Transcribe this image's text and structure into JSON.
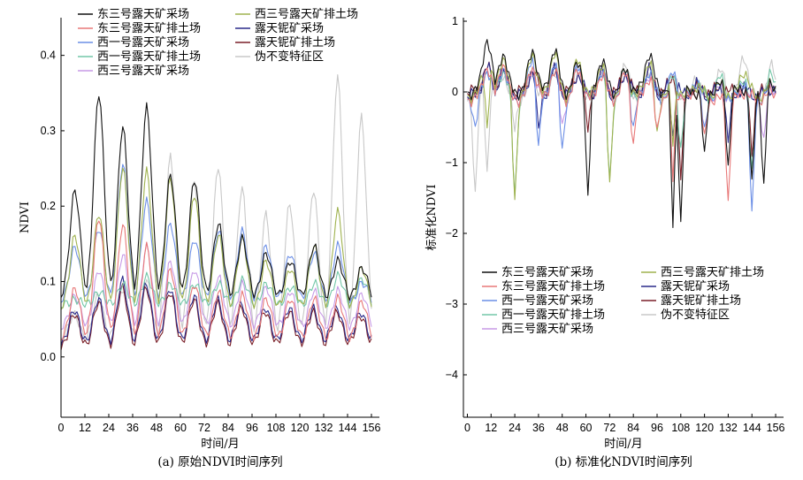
{
  "series_styles": [
    {
      "key": "east3_mine",
      "color": "#111111",
      "width": 1.1
    },
    {
      "key": "east3_dump",
      "color": "#e87878",
      "width": 1.1
    },
    {
      "key": "west1_mine",
      "color": "#6c8fe6",
      "width": 1.1
    },
    {
      "key": "west1_dump",
      "color": "#73c7a8",
      "width": 1.1
    },
    {
      "key": "west3_mine",
      "color": "#c79ae6",
      "width": 1.1
    },
    {
      "key": "west3_dump",
      "color": "#9fb24f",
      "width": 1.1
    },
    {
      "key": "niobium_mine",
      "color": "#2a2a8a",
      "width": 1.1
    },
    {
      "key": "niobium_dump",
      "color": "#7a1f28",
      "width": 1.1
    },
    {
      "key": "invariant",
      "color": "#c8c8c8",
      "width": 1.1
    }
  ],
  "chart_data": [
    {
      "id": "panel_a",
      "type": "line",
      "caption": "(a) 原始NDVI时间序列",
      "xlabel": "时间/月",
      "ylabel": "NDVI",
      "xlim": [
        0,
        160
      ],
      "ylim": [
        -0.08,
        0.45
      ],
      "xticks": [
        0,
        12,
        24,
        36,
        48,
        60,
        72,
        84,
        96,
        108,
        120,
        132,
        144,
        156
      ],
      "yticks": [
        0.0,
        0.1,
        0.2,
        0.3,
        0.4
      ],
      "ytick_labels": [
        "0.0",
        "0.1",
        "0.2",
        "0.3",
        "0.4"
      ],
      "legend": {
        "placement": "top-left",
        "rows": [
          [
            {
              "key": "east3_mine",
              "label": "东三号露天矿采场"
            },
            {
              "key": "west3_dump",
              "label": "西三号露天矿排土场"
            }
          ],
          [
            {
              "key": "east3_dump",
              "label": "东三号露天矿排土场"
            },
            {
              "key": "niobium_mine",
              "label": "露天铌矿采场"
            }
          ],
          [
            {
              "key": "west1_mine",
              "label": "西一号露天矿采场"
            },
            {
              "key": "niobium_dump",
              "label": "露天铌矿排土场"
            }
          ],
          [
            {
              "key": "west1_dump",
              "label": "西一号露天矿排土场"
            },
            {
              "key": "invariant",
              "label": "伪不变特征区"
            }
          ],
          [
            {
              "key": "west3_mine",
              "label": "西三号露天矿采场"
            }
          ]
        ]
      },
      "season_peaks": [
        {
          "x": 7,
          "values": {
            "east3_mine": 0.225,
            "west3_dump": 0.165,
            "east3_dump": 0.095,
            "west1_mine": 0.15,
            "west1_dump": 0.08,
            "west3_mine": 0.085,
            "niobium_mine": 0.06,
            "niobium_dump": 0.055,
            "invariant": 0.055
          }
        },
        {
          "x": 19,
          "values": {
            "east3_mine": 0.355,
            "west3_dump": 0.195,
            "east3_dump": 0.19,
            "west1_mine": 0.175,
            "west1_dump": 0.09,
            "west3_mine": 0.12,
            "niobium_mine": 0.075,
            "niobium_dump": 0.07,
            "invariant": 0.08
          }
        },
        {
          "x": 31,
          "values": {
            "east3_mine": 0.31,
            "west3_dump": 0.255,
            "east3_dump": 0.18,
            "west1_mine": 0.26,
            "west1_dump": 0.1,
            "west3_mine": 0.14,
            "niobium_mine": 0.1,
            "niobium_dump": 0.09,
            "invariant": 0.09
          }
        },
        {
          "x": 43,
          "values": {
            "east3_mine": 0.335,
            "west3_dump": 0.25,
            "east3_dump": 0.15,
            "west1_mine": 0.21,
            "west1_dump": 0.11,
            "west3_mine": 0.15,
            "niobium_mine": 0.095,
            "niobium_dump": 0.09,
            "invariant": 0.1
          }
        },
        {
          "x": 55,
          "values": {
            "east3_mine": 0.245,
            "west3_dump": 0.24,
            "east3_dump": 0.12,
            "west1_mine": 0.18,
            "west1_dump": 0.1,
            "west3_mine": 0.13,
            "niobium_mine": 0.09,
            "niobium_dump": 0.085,
            "invariant": 0.265
          }
        },
        {
          "x": 67,
          "values": {
            "east3_mine": 0.24,
            "west3_dump": 0.22,
            "east3_dump": 0.1,
            "west1_mine": 0.16,
            "west1_dump": 0.1,
            "west3_mine": 0.12,
            "niobium_mine": 0.08,
            "niobium_dump": 0.075,
            "invariant": 0.235
          }
        },
        {
          "x": 79,
          "values": {
            "east3_mine": 0.18,
            "west3_dump": 0.165,
            "east3_dump": 0.09,
            "west1_mine": 0.17,
            "west1_dump": 0.1,
            "west3_mine": 0.11,
            "niobium_mine": 0.075,
            "niobium_dump": 0.07,
            "invariant": 0.255
          }
        },
        {
          "x": 91,
          "values": {
            "east3_mine": 0.16,
            "west3_dump": 0.16,
            "east3_dump": 0.085,
            "west1_mine": 0.17,
            "west1_dump": 0.105,
            "west3_mine": 0.1,
            "niobium_mine": 0.07,
            "niobium_dump": 0.065,
            "invariant": 0.225
          }
        },
        {
          "x": 103,
          "values": {
            "east3_mine": 0.14,
            "west3_dump": 0.13,
            "east3_dump": 0.08,
            "west1_mine": 0.15,
            "west1_dump": 0.1,
            "west3_mine": 0.095,
            "niobium_mine": 0.065,
            "niobium_dump": 0.06,
            "invariant": 0.19
          }
        },
        {
          "x": 115,
          "values": {
            "east3_mine": 0.13,
            "west3_dump": 0.12,
            "east3_dump": 0.08,
            "west1_mine": 0.14,
            "west1_dump": 0.095,
            "west3_mine": 0.09,
            "niobium_mine": 0.065,
            "niobium_dump": 0.06,
            "invariant": 0.205
          }
        },
        {
          "x": 127,
          "values": {
            "east3_mine": 0.15,
            "west3_dump": 0.15,
            "east3_dump": 0.08,
            "west1_mine": 0.14,
            "west1_dump": 0.1,
            "west3_mine": 0.09,
            "niobium_mine": 0.065,
            "niobium_dump": 0.06,
            "invariant": 0.225
          }
        },
        {
          "x": 139,
          "values": {
            "east3_mine": 0.13,
            "west3_dump": 0.195,
            "east3_dump": 0.08,
            "west1_mine": 0.15,
            "west1_dump": 0.11,
            "west3_mine": 0.09,
            "niobium_mine": 0.065,
            "niobium_dump": 0.06,
            "invariant": 0.375
          }
        },
        {
          "x": 151,
          "values": {
            "east3_mine": 0.12,
            "west3_dump": 0.12,
            "east3_dump": 0.075,
            "west1_mine": 0.1,
            "west1_dump": 0.105,
            "west3_mine": 0.085,
            "niobium_mine": 0.06,
            "niobium_dump": 0.055,
            "invariant": 0.32
          }
        }
      ],
      "season_troughs": {
        "east3_mine": 0.075,
        "west3_dump": 0.06,
        "east3_dump": 0.02,
        "west1_mine": 0.07,
        "west1_dump": 0.065,
        "west3_mine": 0.035,
        "niobium_mine": 0.02,
        "niobium_dump": 0.015,
        "invariant": 0.025
      }
    },
    {
      "id": "panel_b",
      "type": "line",
      "caption": "(b) 标准化NDVI时间序列",
      "xlabel": "时间/月",
      "ylabel": "标准化NDVI",
      "xlim": [
        -2,
        160
      ],
      "ylim": [
        -4.6,
        1.05
      ],
      "xticks": [
        0,
        12,
        24,
        36,
        48,
        60,
        72,
        84,
        96,
        108,
        120,
        132,
        144,
        156
      ],
      "yticks": [
        1,
        0,
        -1,
        -2,
        -3,
        -4
      ],
      "ytick_labels": [
        "1",
        "0",
        "−1",
        "−2",
        "−3",
        "−4"
      ],
      "legend": {
        "placement": "bottom-left",
        "rows": [
          [
            {
              "key": "east3_mine",
              "label": "东三号露天矿采场"
            },
            {
              "key": "west3_dump",
              "label": "西三号露天矿排土场"
            }
          ],
          [
            {
              "key": "east3_dump",
              "label": "东三号露天矿排土场"
            },
            {
              "key": "niobium_mine",
              "label": "露天铌矿采场"
            }
          ],
          [
            {
              "key": "west1_mine",
              "label": "西一号露天矿采场"
            },
            {
              "key": "niobium_dump",
              "label": "露天铌矿排土场"
            }
          ],
          [
            {
              "key": "west1_dump",
              "label": "西一号露天矿排土场"
            },
            {
              "key": "invariant",
              "label": "伪不变特征区"
            }
          ],
          [
            {
              "key": "west3_mine",
              "label": "西三号露天矿采场"
            }
          ]
        ]
      },
      "baseline": {
        "east3_mine": 0.15,
        "west3_dump": 0.1,
        "east3_dump": 0.05,
        "west1_mine": 0.05,
        "west1_dump": 0.05,
        "west3_mine": 0.05,
        "niobium_mine": 0.1,
        "niobium_dump": 0.15,
        "invariant": 0.05
      },
      "season_peaks": [
        {
          "x": 10,
          "values": {
            "east3_mine": 0.75,
            "west3_dump": 0.6,
            "east3_dump": 0.35,
            "west1_mine": 0.3,
            "west1_dump": 0.3,
            "west3_mine": 0.3,
            "niobium_mine": 0.35,
            "niobium_dump": 0.35,
            "invariant": 0.3
          }
        },
        {
          "x": 18,
          "values": {
            "east3_mine": 0.55,
            "west3_dump": 0.5,
            "east3_dump": 0.4,
            "west1_mine": 0.35,
            "west1_dump": 0.3,
            "west3_mine": 0.3,
            "niobium_mine": 0.3,
            "niobium_dump": 0.3,
            "invariant": 0.25
          }
        },
        {
          "x": 33,
          "values": {
            "east3_mine": 0.6,
            "west3_dump": 0.55,
            "east3_dump": 0.35,
            "west1_mine": 0.5,
            "west1_dump": 0.35,
            "west3_mine": 0.3,
            "niobium_mine": 0.3,
            "niobium_dump": 0.3,
            "invariant": 0.25
          }
        },
        {
          "x": 44,
          "values": {
            "east3_mine": 0.6,
            "west3_dump": 0.55,
            "east3_dump": 0.3,
            "west1_mine": 0.4,
            "west1_dump": 0.3,
            "west3_mine": 0.3,
            "niobium_mine": 0.3,
            "niobium_dump": 0.3,
            "invariant": 0.3
          }
        },
        {
          "x": 56,
          "values": {
            "east3_mine": 0.4,
            "west3_dump": 0.45,
            "east3_dump": 0.3,
            "west1_mine": 0.35,
            "west1_dump": 0.3,
            "west3_mine": 0.3,
            "niobium_mine": 0.25,
            "niobium_dump": 0.25,
            "invariant": 0.35
          }
        },
        {
          "x": 68,
          "values": {
            "east3_mine": 0.45,
            "west3_dump": 0.4,
            "east3_dump": 0.25,
            "west1_mine": 0.3,
            "west1_dump": 0.3,
            "west3_mine": 0.3,
            "niobium_mine": 0.25,
            "niobium_dump": 0.25,
            "invariant": 0.35
          }
        },
        {
          "x": 80,
          "values": {
            "east3_mine": 0.3,
            "west3_dump": 0.3,
            "east3_dump": 0.25,
            "west1_mine": 0.3,
            "west1_dump": 0.3,
            "west3_mine": 0.3,
            "niobium_mine": 0.25,
            "niobium_dump": 0.25,
            "invariant": 0.35
          }
        },
        {
          "x": 92,
          "values": {
            "east3_mine": 0.55,
            "west3_dump": 0.45,
            "east3_dump": 0.2,
            "west1_mine": 0.3,
            "west1_dump": 0.3,
            "west3_mine": 0.25,
            "niobium_mine": 0.3,
            "niobium_dump": 0.3,
            "invariant": 0.3
          }
        },
        {
          "x": 104,
          "values": {
            "east3_mine": 0.3,
            "west3_dump": 0.25,
            "east3_dump": 0.2,
            "west1_mine": 0.25,
            "west1_dump": 0.2,
            "west3_mine": 0.2,
            "niobium_mine": 0.25,
            "niobium_dump": 0.2,
            "invariant": 0.2
          }
        },
        {
          "x": 116,
          "values": {
            "east3_mine": 0.0,
            "west3_dump": 0.1,
            "east3_dump": 0.0,
            "west1_mine": 0.15,
            "west1_dump": 0.15,
            "west3_mine": 0.1,
            "niobium_mine": 0.1,
            "niobium_dump": 0.05,
            "invariant": 0.2
          }
        },
        {
          "x": 128,
          "values": {
            "east3_mine": 0.1,
            "west3_dump": 0.1,
            "east3_dump": -0.1,
            "west1_mine": 0.1,
            "west1_dump": 0.2,
            "west3_mine": 0.05,
            "niobium_mine": 0.05,
            "niobium_dump": 0.05,
            "invariant": 0.3
          }
        },
        {
          "x": 140,
          "values": {
            "east3_mine": 0.05,
            "west3_dump": 0.3,
            "east3_dump": 0.0,
            "west1_mine": 0.15,
            "west1_dump": 0.2,
            "west3_mine": 0.05,
            "niobium_mine": 0.05,
            "niobium_dump": 0.05,
            "invariant": 0.5
          }
        },
        {
          "x": 154,
          "values": {
            "east3_mine": 0.1,
            "west3_dump": 0.1,
            "east3_dump": 0.0,
            "west1_mine": 0.1,
            "west1_dump": 0.25,
            "west3_mine": 0.05,
            "niobium_mine": 0.05,
            "niobium_dump": 0.05,
            "invariant": 0.35
          }
        }
      ],
      "dips": [
        {
          "x": 4,
          "values": {
            "invariant": -1.45,
            "west1_mine": -0.55
          }
        },
        {
          "x": 10,
          "values": {
            "invariant": -1.15,
            "west3_dump": -0.5
          }
        },
        {
          "x": 24,
          "values": {
            "west3_dump": -1.55,
            "west1_dump": -1.5,
            "invariant": -0.55
          }
        },
        {
          "x": 36,
          "values": {
            "west1_mine": -0.8,
            "niobium_mine": -0.55
          }
        },
        {
          "x": 48,
          "values": {
            "west1_mine": -0.85,
            "west3_mine": -0.5
          }
        },
        {
          "x": 61,
          "values": {
            "east3_mine": -1.5,
            "niobium_dump": -0.55
          }
        },
        {
          "x": 72,
          "values": {
            "west3_dump": -1.35,
            "west1_dump": -1.3
          }
        },
        {
          "x": 84,
          "values": {
            "east3_dump": -0.75,
            "west1_mine": -0.5
          }
        },
        {
          "x": 96,
          "values": {
            "east3_dump": -0.6,
            "west3_dump": -0.65
          }
        },
        {
          "x": 104,
          "values": {
            "east3_mine": -1.9,
            "east3_dump": -1.25,
            "niobium_mine": -0.65,
            "west3_dump": -0.75
          }
        },
        {
          "x": 108,
          "values": {
            "east3_mine": -1.85,
            "niobium_dump": -1.25,
            "west1_dump": -0.8
          }
        },
        {
          "x": 120,
          "values": {
            "east3_mine": -0.95,
            "east3_dump": -0.7,
            "west1_mine": -0.6
          }
        },
        {
          "x": 132,
          "values": {
            "east3_dump": -1.55,
            "east3_mine": -1.05,
            "niobium_mine": -0.7
          }
        },
        {
          "x": 144,
          "values": {
            "west1_mine": -1.8,
            "east3_mine": -1.35,
            "west1_dump": -1.2,
            "niobium_dump": -0.85
          }
        },
        {
          "x": 150,
          "values": {
            "east3_mine": -1.35,
            "west3_mine": -0.7
          }
        }
      ]
    }
  ]
}
